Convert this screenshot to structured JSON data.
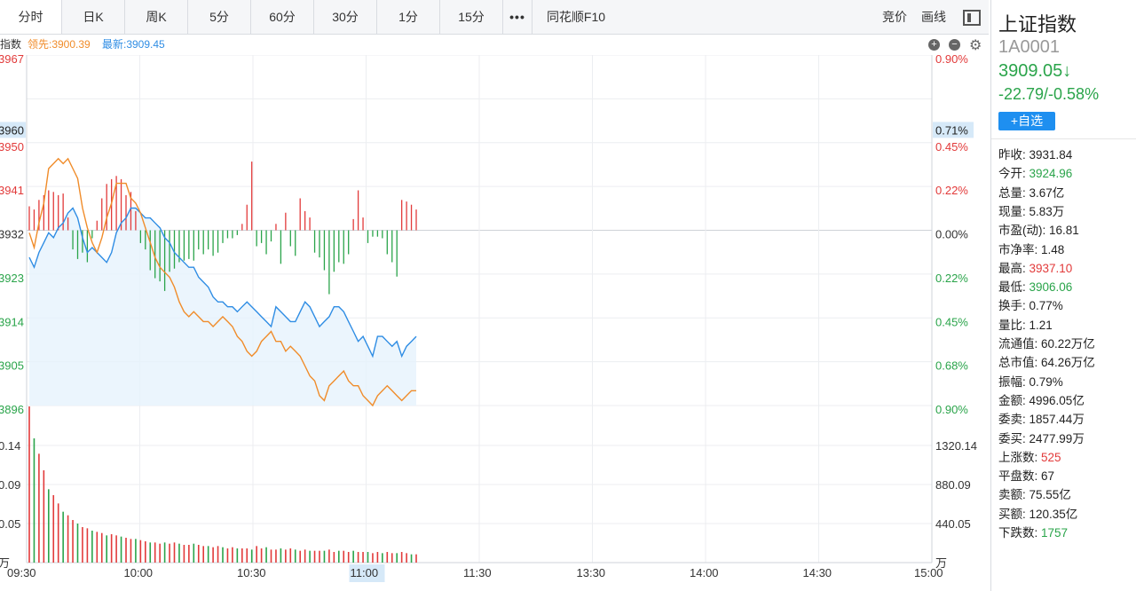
{
  "tabs": [
    {
      "label": "分时",
      "active": true
    },
    {
      "label": "日K"
    },
    {
      "label": "周K"
    },
    {
      "label": "5分"
    },
    {
      "label": "60分"
    },
    {
      "label": "30分"
    },
    {
      "label": "1分"
    },
    {
      "label": "15分"
    },
    {
      "label": "•••"
    },
    {
      "label": "同花顺F10"
    }
  ],
  "toolbar_right": {
    "bid": "竞价",
    "draw": "画线"
  },
  "legend": {
    "index_label": "指数",
    "leader_label": "领先:3900.39",
    "latest_label": "最新:3909.45"
  },
  "colors": {
    "red": "#e23a3a",
    "green": "#2aa44a",
    "orange": "#f08c2a",
    "blue": "#2f8de4"
  },
  "chart_data": {
    "type": "line",
    "price_axis_labels": [
      "3967",
      "3960",
      "3950",
      "3941",
      "3932",
      "3923",
      "3914",
      "3905",
      "3896"
    ],
    "price_axis_values": [
      3967,
      3960,
      3950,
      3941,
      3932,
      3923,
      3914,
      3905,
      3896
    ],
    "pct_axis_labels": [
      "0.90%",
      "0.71%",
      "0.45%",
      "0.22%",
      "0.00%",
      "0.22%",
      "0.45%",
      "0.68%",
      "0.90%"
    ],
    "volume_axis_left": [
      "0.14",
      "0.09",
      "0.05",
      "万"
    ],
    "volume_axis_right": [
      "1320.14",
      "880.09",
      "440.05",
      "万"
    ],
    "time_labels": [
      "09:30",
      "10:00",
      "10:30",
      "11:00",
      "11:30",
      "13:30",
      "14:00",
      "14:30",
      "15:00"
    ],
    "highlight_price": "3960",
    "highlight_pct": "0.71%",
    "highlight_time": "11:00",
    "series": [
      {
        "name": "最新",
        "color": "#2f8de4",
        "values": [
          3926,
          3924,
          3927,
          3929,
          3931,
          3930,
          3932,
          3933,
          3935,
          3936,
          3934,
          3930,
          3927,
          3928,
          3927,
          3926,
          3925,
          3927,
          3931,
          3933,
          3934,
          3936,
          3936,
          3935,
          3934,
          3934,
          3933,
          3932,
          3930,
          3929,
          3927,
          3926,
          3925,
          3924,
          3924,
          3922,
          3921,
          3920,
          3918,
          3917,
          3917,
          3916,
          3916,
          3915,
          3916,
          3917,
          3916,
          3915,
          3914,
          3913,
          3912,
          3916,
          3915,
          3914,
          3913,
          3913,
          3915,
          3917,
          3916,
          3914,
          3912,
          3913,
          3914,
          3916,
          3916,
          3915,
          3913,
          3911,
          3909,
          3910,
          3908,
          3906,
          3910,
          3910,
          3909,
          3908,
          3909,
          3906,
          3908,
          3909,
          3910
        ]
      },
      {
        "name": "领先",
        "color": "#f08c2a",
        "values": [
          3931,
          3928,
          3933,
          3937,
          3944,
          3945,
          3946,
          3945,
          3946,
          3944,
          3942,
          3936,
          3932,
          3929,
          3927,
          3930,
          3934,
          3937,
          3941,
          3941,
          3941,
          3938,
          3937,
          3935,
          3932,
          3929,
          3926,
          3924,
          3923,
          3922,
          3920,
          3917,
          3915,
          3914,
          3915,
          3914,
          3913,
          3913,
          3912,
          3913,
          3914,
          3913,
          3912,
          3910,
          3909,
          3907,
          3906,
          3907,
          3909,
          3910,
          3911,
          3909,
          3909,
          3907,
          3908,
          3907,
          3906,
          3904,
          3902,
          3901,
          3898,
          3897,
          3900,
          3901,
          3902,
          3903,
          3901,
          3900,
          3900,
          3898,
          3897,
          3896,
          3898,
          3899,
          3900,
          3899,
          3898,
          3897,
          3898,
          3899,
          3899
        ]
      },
      {
        "name": "涨跌柱",
        "values": [
          1.5,
          1.3,
          1.9,
          2.2,
          2.5,
          2.4,
          2.2,
          2.3,
          0.8,
          -1.2,
          -1.8,
          -1.4,
          -2.0,
          -0.5,
          0.6,
          2.0,
          2.9,
          3.2,
          3.4,
          3.2,
          2.2,
          2.4,
          1.2,
          -0.8,
          -1.2,
          -2.5,
          -3.0,
          -3.2,
          -3.8,
          -2.6,
          -2.4,
          -2.0,
          -1.9,
          -1.8,
          -1.9,
          -1.2,
          -1.5,
          -1.2,
          -1.6,
          -1.4,
          -0.8,
          -0.5,
          -0.5,
          -0.3,
          0.4,
          1.6,
          4.3,
          -1.0,
          -0.8,
          -1.5,
          -0.7,
          0.4,
          -2.1,
          1.1,
          -1.0,
          -1.6,
          2.0,
          1.2,
          0.8,
          -1.4,
          -1.7,
          -2.5,
          -4.0,
          -2.6,
          -2.0,
          -2.1,
          -1.5,
          0.7,
          2.5,
          0.8,
          -0.8,
          -0.4,
          -0.4,
          -0.5,
          -1.5,
          -2.0,
          -2.9,
          1.9,
          1.8,
          1.6,
          1.3
        ]
      },
      {
        "name": "成交量",
        "values": [
          1.32,
          1.05,
          0.92,
          0.78,
          0.62,
          0.57,
          0.5,
          0.43,
          0.4,
          0.36,
          0.33,
          0.3,
          0.29,
          0.27,
          0.26,
          0.25,
          0.23,
          0.24,
          0.23,
          0.22,
          0.21,
          0.2,
          0.2,
          0.19,
          0.18,
          0.17,
          0.17,
          0.16,
          0.17,
          0.16,
          0.17,
          0.16,
          0.15,
          0.15,
          0.16,
          0.15,
          0.14,
          0.14,
          0.13,
          0.14,
          0.13,
          0.12,
          0.13,
          0.12,
          0.12,
          0.12,
          0.11,
          0.14,
          0.12,
          0.13,
          0.11,
          0.11,
          0.12,
          0.11,
          0.12,
          0.11,
          0.1,
          0.11,
          0.1,
          0.1,
          0.1,
          0.1,
          0.11,
          0.09,
          0.1,
          0.1,
          0.09,
          0.1,
          0.09,
          0.09,
          0.09,
          0.08,
          0.09,
          0.08,
          0.09,
          0.08,
          0.08,
          0.09,
          0.08,
          0.07,
          0.07
        ]
      }
    ]
  },
  "side": {
    "name": "上证指数",
    "code": "1A0001",
    "price": "3909.05↓",
    "change": "-22.79/-0.58%",
    "add_button": "+自选",
    "stats": [
      {
        "label": "昨收:",
        "value": "3931.84",
        "tone": ""
      },
      {
        "label": "今开:",
        "value": "3924.96",
        "tone": "green"
      },
      {
        "label": "总量:",
        "value": "3.67亿",
        "tone": ""
      },
      {
        "label": "现量:",
        "value": "5.83万",
        "tone": ""
      },
      {
        "label": "市盈(动):",
        "value": "16.81",
        "tone": ""
      },
      {
        "label": "市净率:",
        "value": "1.48",
        "tone": ""
      },
      {
        "label": "最高:",
        "value": "3937.10",
        "tone": "red"
      },
      {
        "label": "最低:",
        "value": "3906.06",
        "tone": "green"
      },
      {
        "label": "换手:",
        "value": "0.77%",
        "tone": ""
      },
      {
        "label": "量比:",
        "value": "1.21",
        "tone": ""
      },
      {
        "label": "流通值:",
        "value": "60.22万亿",
        "tone": ""
      },
      {
        "label": "总市值:",
        "value": "64.26万亿",
        "tone": ""
      },
      {
        "label": "振幅:",
        "value": "0.79%",
        "tone": ""
      },
      {
        "label": "金额:",
        "value": "4996.05亿",
        "tone": ""
      },
      {
        "label": "委卖:",
        "value": "1857.44万",
        "tone": ""
      },
      {
        "label": "委买:",
        "value": "2477.99万",
        "tone": ""
      },
      {
        "label": "上涨数:",
        "value": "525",
        "tone": "red"
      },
      {
        "label": "平盘数:",
        "value": "67",
        "tone": ""
      },
      {
        "label": "卖额:",
        "value": "75.55亿",
        "tone": ""
      },
      {
        "label": "买额:",
        "value": "120.35亿",
        "tone": ""
      },
      {
        "label": "下跌数:",
        "value": "1757",
        "tone": "green"
      }
    ]
  }
}
